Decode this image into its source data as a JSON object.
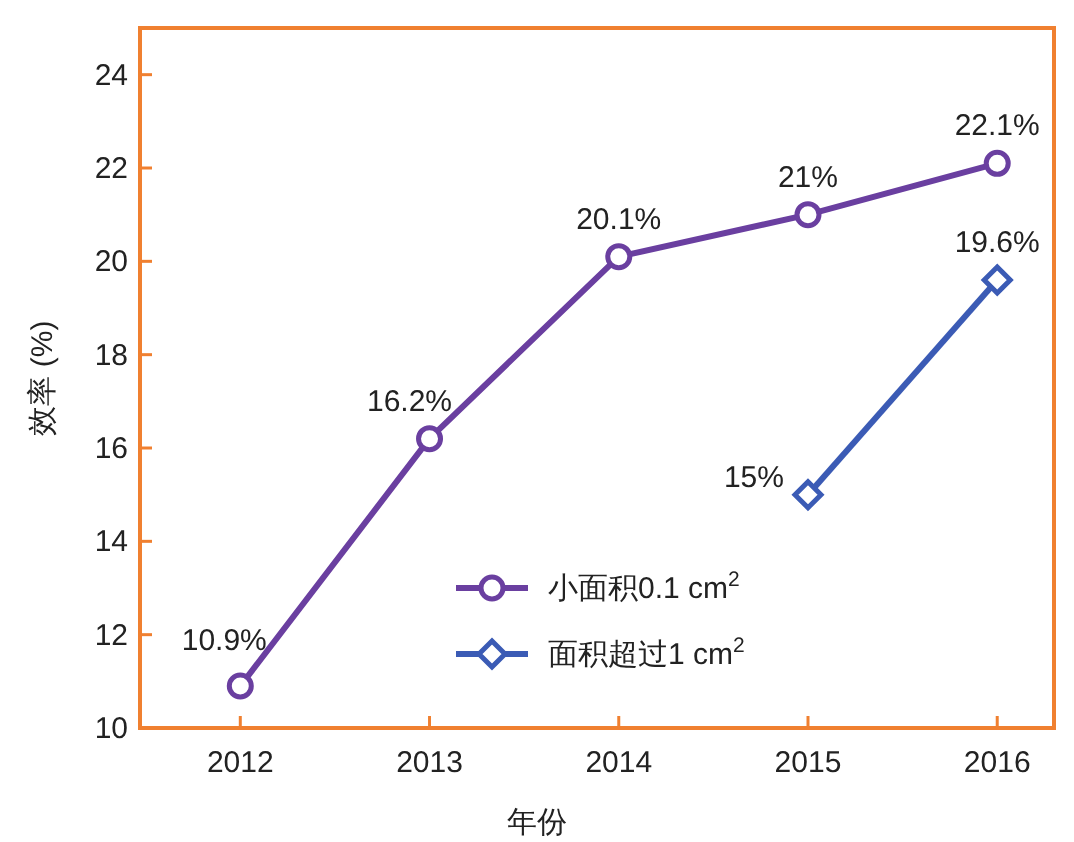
{
  "chart_data": {
    "type": "line",
    "xlabel": "年份",
    "ylabel": "效率 (%)",
    "xlim": [
      2011.47,
      2016.3
    ],
    "ylim": [
      10,
      25
    ],
    "xticks": [
      2012,
      2013,
      2014,
      2015,
      2016
    ],
    "yticks": [
      10,
      12,
      14,
      16,
      18,
      20,
      22,
      24
    ],
    "legend": "bottom right",
    "grid": false,
    "series": [
      {
        "name": "小面积0.1 cm$^{2}$",
        "color": "#6a3fa0",
        "marker": "circle",
        "x": [
          2012,
          2013,
          2014,
          2015,
          2016
        ],
        "values": [
          10.9,
          16.2,
          20.1,
          21,
          22.1
        ],
        "value_labels": [
          "10.9%",
          "16.2%",
          "20.1%",
          "21%",
          "22.1%"
        ]
      },
      {
        "name": "面积超过1 cm$^{2}$",
        "color": "#3b5bb5",
        "marker": "diamond",
        "x": [
          2015,
          2016
        ],
        "values": [
          15,
          19.6
        ],
        "value_labels": [
          "15%",
          "19.6%"
        ]
      }
    ]
  }
}
